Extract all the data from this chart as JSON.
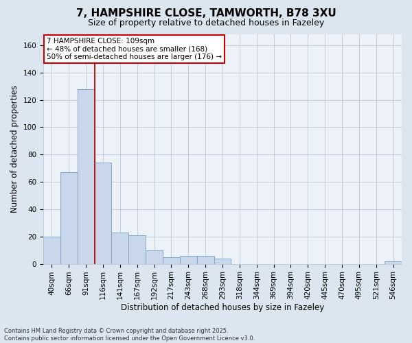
{
  "title1": "7, HAMPSHIRE CLOSE, TAMWORTH, B78 3XU",
  "title2": "Size of property relative to detached houses in Fazeley",
  "xlabel": "Distribution of detached houses by size in Fazeley",
  "ylabel": "Number of detached properties",
  "categories": [
    "40sqm",
    "66sqm",
    "91sqm",
    "116sqm",
    "141sqm",
    "167sqm",
    "192sqm",
    "217sqm",
    "243sqm",
    "268sqm",
    "293sqm",
    "318sqm",
    "344sqm",
    "369sqm",
    "394sqm",
    "420sqm",
    "445sqm",
    "470sqm",
    "495sqm",
    "521sqm",
    "546sqm"
  ],
  "values": [
    20,
    67,
    128,
    74,
    23,
    21,
    10,
    5,
    6,
    6,
    4,
    0,
    0,
    0,
    0,
    0,
    0,
    0,
    0,
    0,
    2
  ],
  "bar_color": "#c8d8ea",
  "bar_edge_color": "#7aa8cc",
  "vline_x": 2.5,
  "vline_color": "#cc0000",
  "annotation_line1": "7 HAMPSHIRE CLOSE: 109sqm",
  "annotation_line2": "← 48% of detached houses are smaller (168)",
  "annotation_line3": "50% of semi-detached houses are larger (176) →",
  "annotation_box_color": "#cc0000",
  "ylim": [
    0,
    168
  ],
  "yticks": [
    0,
    20,
    40,
    60,
    80,
    100,
    120,
    140,
    160
  ],
  "footer": "Contains HM Land Registry data © Crown copyright and database right 2025.\nContains public sector information licensed under the Open Government Licence v3.0.",
  "bg_color": "#dce6f0",
  "plot_bg_color": "#edf2f8",
  "grid_color": "#b8c8d8",
  "title1_fontsize": 11,
  "title2_fontsize": 9,
  "xlabel_fontsize": 8.5,
  "ylabel_fontsize": 8.5,
  "tick_fontsize": 7.5,
  "footer_fontsize": 6.0
}
